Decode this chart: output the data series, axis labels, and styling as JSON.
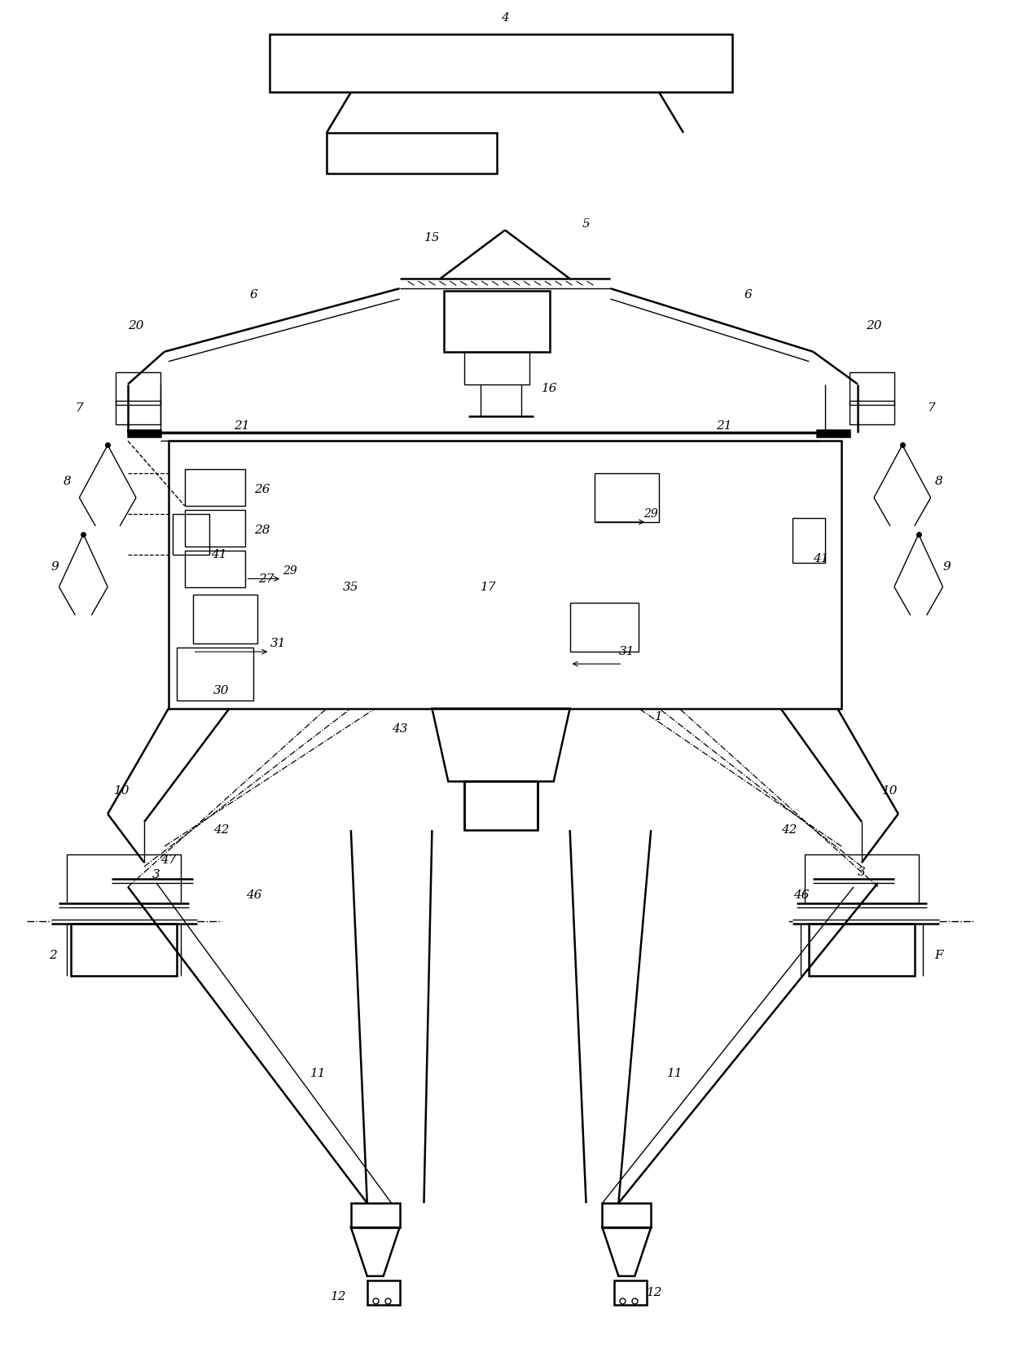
{
  "bg_color": "#ffffff",
  "line_color": "#000000",
  "fig_width": 12.4,
  "fig_height": 16.66,
  "dpi": 100
}
